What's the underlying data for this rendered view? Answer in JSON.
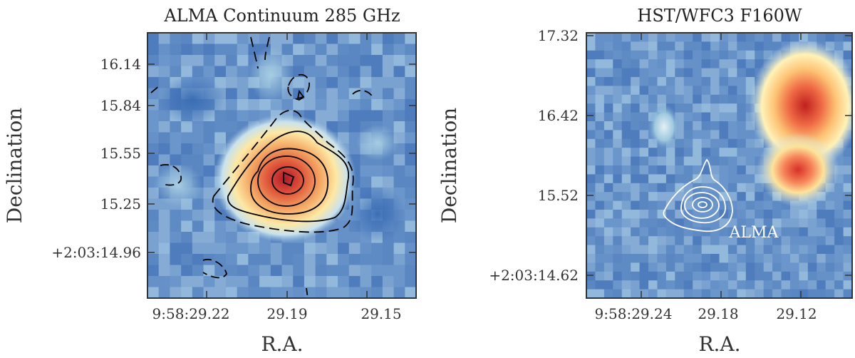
{
  "chart_data": [
    {
      "type": "heatmap",
      "title": "ALMA Continuum 285 GHz",
      "xlabel": "R.A.",
      "ylabel": "Declination",
      "xticks": [
        "9:58:29.22",
        "29.19",
        "29.15"
      ],
      "yticks": [
        "16.14",
        "15.84",
        "15.55",
        "15.25",
        "+2:03:14.96"
      ],
      "colormap": "RdYlBu_r",
      "contour_color": "#000000",
      "source": {
        "ra": "29.19",
        "dec": "15.40"
      }
    },
    {
      "type": "heatmap",
      "title": "HST/WFC3 F160W",
      "xlabel": "R.A.",
      "ylabel": "Declination",
      "xticks": [
        "9:58:29.24",
        "29.18",
        "29.12"
      ],
      "yticks": [
        "17.32",
        "16.42",
        "15.52",
        "+2:03:14.62"
      ],
      "colormap": "RdYlBu_r",
      "contour_color": "#ffffff",
      "annotation": "ALMA"
    }
  ]
}
